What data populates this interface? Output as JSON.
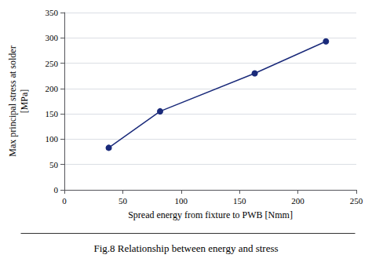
{
  "chart_data": {
    "type": "line",
    "title": "Fig.8 Relationship between energy and stress",
    "xlabel": "Spread energy from fixture to PWB [Nmm]",
    "ylabel": "Max principal stress at solder\n[MPa]",
    "x": [
      38,
      82,
      163,
      224
    ],
    "values": [
      83,
      155,
      230,
      293
    ],
    "color": "#1a2a7a",
    "marker": "circle",
    "xlim": [
      0,
      250
    ],
    "ylim": [
      0,
      350
    ],
    "xticks": [
      0,
      50,
      100,
      150,
      200,
      250
    ],
    "yticks": [
      0,
      50,
      100,
      150,
      200,
      250,
      300,
      350
    ],
    "grid": true
  }
}
